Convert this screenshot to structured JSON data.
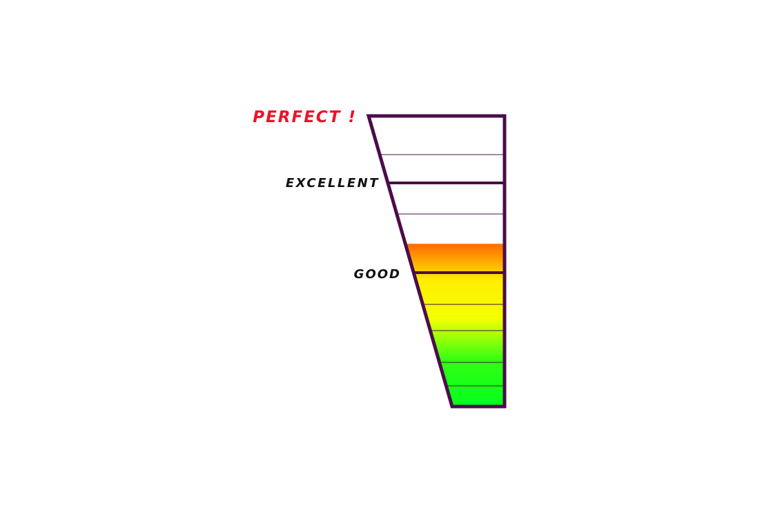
{
  "meter": {
    "fill_level": 0.56,
    "fill_gradient": [
      "#ff6a00",
      "#ffee00",
      "#f4ff00",
      "#33ff12",
      "#00ff1e"
    ],
    "frame_color": "#4a0d4b",
    "thin_line_color": "#4a0d4b",
    "tiers": [
      {
        "id": "perfect",
        "label": "PERFECT !",
        "color": "#ee1128"
      },
      {
        "id": "excellent",
        "label": "EXCELLENT",
        "color": "#111111"
      },
      {
        "id": "good",
        "label": "GOOD",
        "color": "#111111"
      }
    ]
  }
}
